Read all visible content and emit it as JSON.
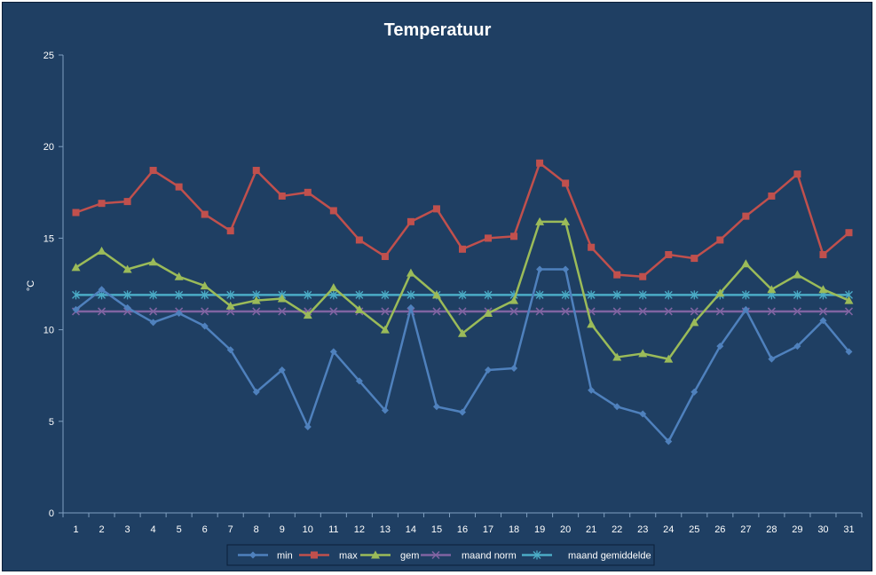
{
  "chart_data": {
    "type": "line",
    "title": "Temperatuur",
    "xlabel": "",
    "ylabel": "°C",
    "ylim": [
      0,
      25
    ],
    "yticks": [
      "0",
      "5",
      "10",
      "15",
      "20",
      "25"
    ],
    "categories": [
      "1",
      "2",
      "3",
      "4",
      "5",
      "6",
      "7",
      "8",
      "9",
      "10",
      "11",
      "12",
      "13",
      "14",
      "15",
      "16",
      "17",
      "18",
      "19",
      "20",
      "21",
      "22",
      "23",
      "24",
      "25",
      "26",
      "27",
      "28",
      "29",
      "30",
      "31"
    ],
    "grid": false,
    "legend_position": "bottom",
    "series": [
      {
        "name": "min",
        "color": "#4f81bd",
        "marker": "diamond",
        "values": [
          11.1,
          12.2,
          11.2,
          10.4,
          10.9,
          10.2,
          8.9,
          6.6,
          7.8,
          4.7,
          8.8,
          7.2,
          5.6,
          11.2,
          5.8,
          5.5,
          7.8,
          7.9,
          13.3,
          13.3,
          6.7,
          5.8,
          5.4,
          3.9,
          6.6,
          9.1,
          11.1,
          8.4,
          9.1,
          10.5,
          8.8
        ]
      },
      {
        "name": "max",
        "color": "#c0504d",
        "marker": "square",
        "values": [
          16.4,
          16.9,
          17.0,
          18.7,
          17.8,
          16.3,
          15.4,
          18.7,
          17.3,
          17.5,
          16.5,
          14.9,
          14.0,
          15.9,
          16.6,
          14.4,
          15.0,
          15.1,
          19.1,
          18.0,
          14.5,
          13.0,
          12.9,
          14.1,
          13.9,
          14.9,
          16.2,
          17.3,
          18.5,
          14.1,
          15.3
        ]
      },
      {
        "name": "gem",
        "color": "#9bbb59",
        "marker": "triangle",
        "values": [
          13.4,
          14.3,
          13.3,
          13.7,
          12.9,
          12.4,
          11.3,
          11.6,
          11.7,
          10.8,
          12.3,
          11.1,
          10.0,
          13.1,
          11.9,
          9.8,
          10.9,
          11.6,
          15.9,
          15.9,
          10.3,
          8.5,
          8.7,
          8.4,
          10.4,
          12.0,
          13.6,
          12.2,
          13.0,
          12.2,
          11.6
        ]
      },
      {
        "name": "maand norm",
        "color": "#8064a2",
        "marker": "x",
        "values": [
          11.0,
          11.0,
          11.0,
          11.0,
          11.0,
          11.0,
          11.0,
          11.0,
          11.0,
          11.0,
          11.0,
          11.0,
          11.0,
          11.0,
          11.0,
          11.0,
          11.0,
          11.0,
          11.0,
          11.0,
          11.0,
          11.0,
          11.0,
          11.0,
          11.0,
          11.0,
          11.0,
          11.0,
          11.0,
          11.0,
          11.0
        ]
      },
      {
        "name": "maand gemiddelde",
        "color": "#4bacc6",
        "marker": "star",
        "values": [
          11.9,
          11.9,
          11.9,
          11.9,
          11.9,
          11.9,
          11.9,
          11.9,
          11.9,
          11.9,
          11.9,
          11.9,
          11.9,
          11.9,
          11.9,
          11.9,
          11.9,
          11.9,
          11.9,
          11.9,
          11.9,
          11.9,
          11.9,
          11.9,
          11.9,
          11.9,
          11.9,
          11.9,
          11.9,
          11.9,
          11.9
        ]
      }
    ]
  },
  "colors": {
    "background": "#1f3f63",
    "axis": "#7f9fc0",
    "text": "#ffffff"
  }
}
